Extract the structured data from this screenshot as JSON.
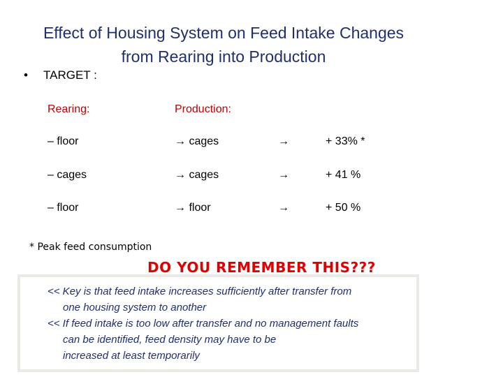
{
  "title": {
    "line1": "Effect of Housing System on Feed Intake Changes",
    "line2": "from Rearing into Production"
  },
  "bullet": {
    "marker": "•",
    "label": "TARGET :"
  },
  "table": {
    "headers": [
      "Rearing:",
      "Production:"
    ],
    "rows": [
      {
        "rearing": "–  floor",
        "production": "cages",
        "change": "+  33% *"
      },
      {
        "rearing": "–  cages",
        "production": "cages",
        "change": "+  41 %"
      },
      {
        "rearing": "–  floor",
        "production": "floor",
        "change": "+  50 %"
      }
    ],
    "arrow": "→"
  },
  "footnote": "* Peak feed consumption",
  "remember": "DO YOU REMEMBER THIS???",
  "notes": {
    "line1": "<< Key is that feed intake increases sufficiently after transfer from",
    "line2": "one housing system to another",
    "line3": "<< If feed intake is too low after transfer and no management faults",
    "line4": "can be identified, feed density may have to be",
    "line5": "increased at least temporarily"
  }
}
